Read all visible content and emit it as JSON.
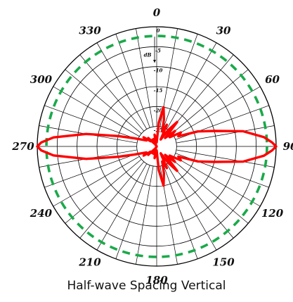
{
  "chart_data": {
    "type": "polar",
    "caption": "Half-wave Spacing Vertical",
    "angle_labels": [
      "0",
      "30",
      "60",
      "90",
      "120",
      "150",
      "180",
      "210",
      "240",
      "270",
      "300",
      "330"
    ],
    "angle_units": "degrees",
    "radial_unit_label": "dB",
    "radial_labels": [
      "0",
      "-5",
      "-10",
      "-15",
      "-20",
      "-25"
    ],
    "radial_range_db": [
      -30,
      0
    ],
    "grid": true,
    "series": [
      {
        "color": "#ff0000",
        "style": "solid",
        "pattern_db": [
          [
            0,
            -29
          ],
          [
            5,
            -24
          ],
          [
            10,
            -20
          ],
          [
            15,
            -23
          ],
          [
            20,
            -26
          ],
          [
            25,
            -24
          ],
          [
            30,
            -28
          ],
          [
            35,
            -25
          ],
          [
            40,
            -22
          ],
          [
            45,
            -27
          ],
          [
            50,
            -24
          ],
          [
            55,
            -26
          ],
          [
            60,
            -23
          ],
          [
            65,
            -24
          ],
          [
            70,
            -19
          ],
          [
            75,
            -15
          ],
          [
            80,
            -8
          ],
          [
            85,
            -3
          ],
          [
            88,
            -1
          ],
          [
            90,
            0
          ],
          [
            92,
            -1
          ],
          [
            95,
            -3
          ],
          [
            100,
            -8
          ],
          [
            105,
            -15
          ],
          [
            110,
            -19
          ],
          [
            115,
            -24
          ],
          [
            120,
            -23
          ],
          [
            125,
            -26
          ],
          [
            130,
            -24
          ],
          [
            135,
            -27
          ],
          [
            140,
            -22
          ],
          [
            145,
            -25
          ],
          [
            150,
            -28
          ],
          [
            155,
            -24
          ],
          [
            160,
            -26
          ],
          [
            165,
            -23
          ],
          [
            170,
            -20
          ],
          [
            175,
            -24
          ],
          [
            180,
            -29
          ],
          [
            185,
            -28
          ],
          [
            190,
            -27
          ],
          [
            195,
            -29
          ],
          [
            200,
            -28
          ],
          [
            205,
            -28
          ],
          [
            210,
            -30
          ],
          [
            215,
            -28
          ],
          [
            220,
            -29
          ],
          [
            225,
            -27
          ],
          [
            230,
            -28
          ],
          [
            235,
            -26
          ],
          [
            240,
            -27
          ],
          [
            245,
            -26
          ],
          [
            250,
            -24
          ],
          [
            255,
            -20
          ],
          [
            260,
            -12
          ],
          [
            265,
            -4
          ],
          [
            268,
            -1
          ],
          [
            270,
            0
          ],
          [
            272,
            -1
          ],
          [
            275,
            -4
          ],
          [
            280,
            -12
          ],
          [
            285,
            -20
          ],
          [
            290,
            -24
          ],
          [
            295,
            -26
          ],
          [
            300,
            -27
          ],
          [
            305,
            -26
          ],
          [
            310,
            -28
          ],
          [
            315,
            -27
          ],
          [
            320,
            -29
          ],
          [
            325,
            -28
          ],
          [
            330,
            -30
          ],
          [
            335,
            -28
          ],
          [
            340,
            -28
          ],
          [
            345,
            -29
          ],
          [
            350,
            -27
          ],
          [
            355,
            -28
          ],
          [
            360,
            -29
          ]
        ]
      },
      {
        "color": "#1aaa4a",
        "style": "dashed",
        "constant_db": -2.3
      }
    ]
  }
}
